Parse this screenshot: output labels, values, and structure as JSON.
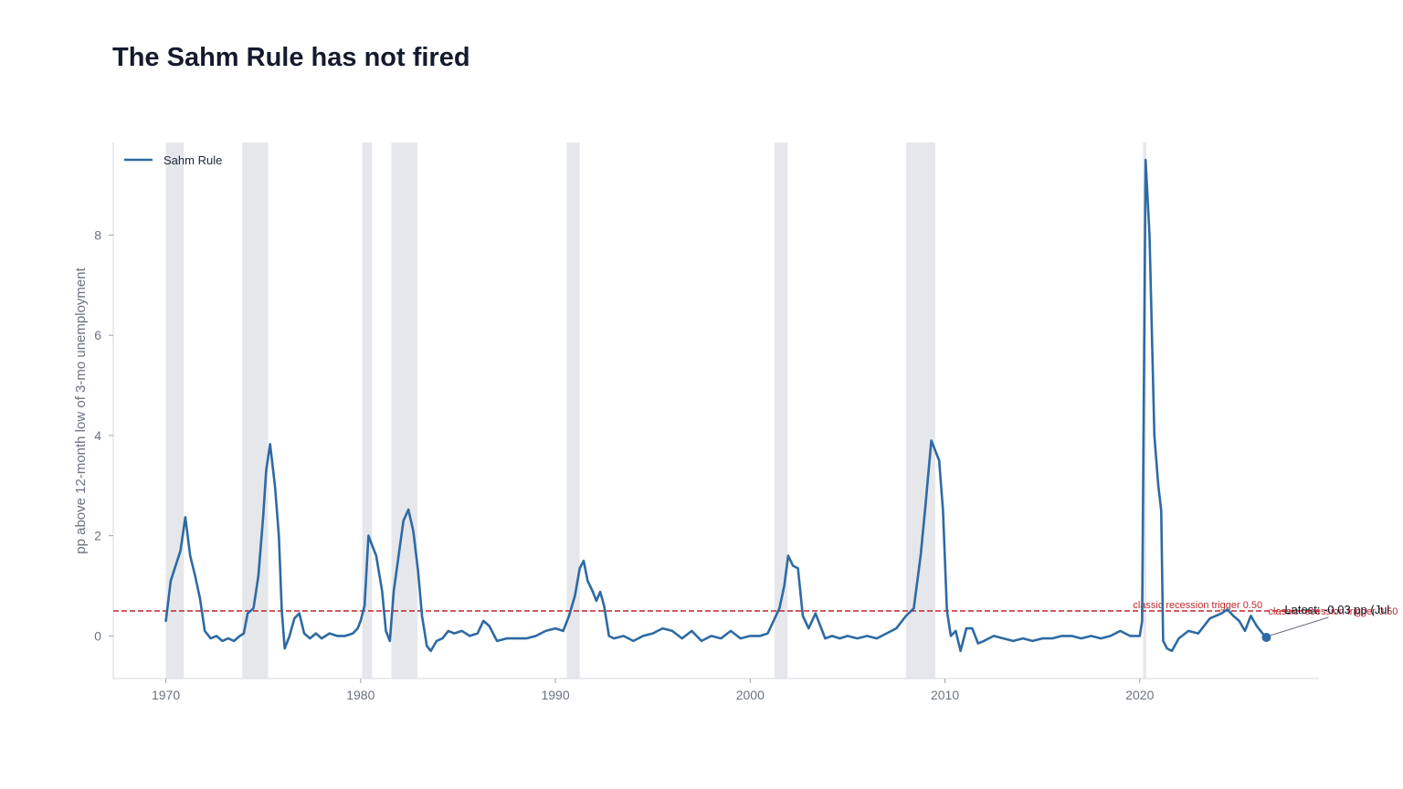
{
  "title": "The Sahm Rule has not fired",
  "chart_data": {
    "type": "line",
    "title": "The Sahm Rule has not fired",
    "xlabel": "",
    "ylabel": "pp above 12-month low of 3-mo unemployment",
    "xlim": [
      1967.3,
      2029.2
    ],
    "ylim": [
      -0.85,
      9.85
    ],
    "x_ticks": [
      1970,
      1980,
      1990,
      2000,
      2010,
      2020
    ],
    "y_ticks": [
      0,
      2,
      4,
      6,
      8
    ],
    "grid": false,
    "legend_position": "top-left",
    "recessions": [
      [
        1970.0,
        1970.92
      ],
      [
        1973.92,
        1975.25
      ],
      [
        1980.08,
        1980.58
      ],
      [
        1981.58,
        1982.92
      ],
      [
        1990.58,
        1991.25
      ],
      [
        2001.25,
        2001.92
      ],
      [
        2008.0,
        2009.5
      ],
      [
        2020.17,
        2020.33
      ]
    ],
    "reference_line": {
      "value": 0.5,
      "label": "classic recession trigger  0.50",
      "color": "#c0272d"
    },
    "annotation": {
      "text": "Latest: -0.03 pp  (Jul",
      "x": 2026.5,
      "y": -0.03
    },
    "series": [
      {
        "name": "Sahm Rule",
        "color": "#2e6aa3",
        "points": [
          [
            1970.0,
            0.3
          ],
          [
            1970.25,
            1.1
          ],
          [
            1970.5,
            1.4
          ],
          [
            1970.75,
            1.7
          ],
          [
            1971.0,
            2.37
          ],
          [
            1971.25,
            1.6
          ],
          [
            1971.5,
            1.2
          ],
          [
            1971.75,
            0.75
          ],
          [
            1972.0,
            0.1
          ],
          [
            1972.3,
            -0.05
          ],
          [
            1972.6,
            0.0
          ],
          [
            1972.9,
            -0.1
          ],
          [
            1973.2,
            -0.05
          ],
          [
            1973.5,
            -0.1
          ],
          [
            1973.8,
            0.0
          ],
          [
            1974.0,
            0.05
          ],
          [
            1974.2,
            0.45
          ],
          [
            1974.5,
            0.55
          ],
          [
            1974.75,
            1.2
          ],
          [
            1975.0,
            2.4
          ],
          [
            1975.15,
            3.3
          ],
          [
            1975.35,
            3.83
          ],
          [
            1975.6,
            3.0
          ],
          [
            1975.8,
            2.0
          ],
          [
            1975.95,
            0.5
          ],
          [
            1976.1,
            -0.25
          ],
          [
            1976.35,
            0.0
          ],
          [
            1976.6,
            0.35
          ],
          [
            1976.85,
            0.45
          ],
          [
            1977.1,
            0.05
          ],
          [
            1977.4,
            -0.05
          ],
          [
            1977.7,
            0.05
          ],
          [
            1978.0,
            -0.05
          ],
          [
            1978.4,
            0.05
          ],
          [
            1978.8,
            0.0
          ],
          [
            1979.2,
            0.0
          ],
          [
            1979.6,
            0.05
          ],
          [
            1979.85,
            0.15
          ],
          [
            1980.0,
            0.3
          ],
          [
            1980.2,
            0.6
          ],
          [
            1980.4,
            2.0
          ],
          [
            1980.6,
            1.8
          ],
          [
            1980.8,
            1.6
          ],
          [
            1981.1,
            0.9
          ],
          [
            1981.3,
            0.1
          ],
          [
            1981.5,
            -0.1
          ],
          [
            1981.7,
            0.9
          ],
          [
            1981.95,
            1.6
          ],
          [
            1982.2,
            2.3
          ],
          [
            1982.45,
            2.52
          ],
          [
            1982.7,
            2.1
          ],
          [
            1982.95,
            1.3
          ],
          [
            1983.15,
            0.4
          ],
          [
            1983.4,
            -0.2
          ],
          [
            1983.6,
            -0.3
          ],
          [
            1983.9,
            -0.1
          ],
          [
            1984.2,
            -0.05
          ],
          [
            1984.5,
            0.1
          ],
          [
            1984.8,
            0.05
          ],
          [
            1985.2,
            0.1
          ],
          [
            1985.6,
            0.0
          ],
          [
            1986.0,
            0.05
          ],
          [
            1986.3,
            0.3
          ],
          [
            1986.6,
            0.2
          ],
          [
            1987.0,
            -0.1
          ],
          [
            1987.5,
            -0.05
          ],
          [
            1988.0,
            -0.05
          ],
          [
            1988.5,
            -0.05
          ],
          [
            1989.0,
            0.0
          ],
          [
            1989.5,
            0.1
          ],
          [
            1990.0,
            0.15
          ],
          [
            1990.4,
            0.1
          ],
          [
            1990.7,
            0.4
          ],
          [
            1991.0,
            0.8
          ],
          [
            1991.25,
            1.35
          ],
          [
            1991.45,
            1.5
          ],
          [
            1991.65,
            1.1
          ],
          [
            1991.9,
            0.9
          ],
          [
            1992.1,
            0.7
          ],
          [
            1992.3,
            0.88
          ],
          [
            1992.5,
            0.6
          ],
          [
            1992.75,
            0.0
          ],
          [
            1993.0,
            -0.05
          ],
          [
            1993.5,
            0.0
          ],
          [
            1994.0,
            -0.1
          ],
          [
            1994.5,
            0.0
          ],
          [
            1995.0,
            0.05
          ],
          [
            1995.5,
            0.15
          ],
          [
            1996.0,
            0.1
          ],
          [
            1996.5,
            -0.05
          ],
          [
            1997.0,
            0.1
          ],
          [
            1997.5,
            -0.1
          ],
          [
            1998.0,
            0.0
          ],
          [
            1998.5,
            -0.05
          ],
          [
            1999.0,
            0.1
          ],
          [
            1999.5,
            -0.05
          ],
          [
            2000.0,
            0.0
          ],
          [
            2000.5,
            0.0
          ],
          [
            2000.9,
            0.05
          ],
          [
            2001.2,
            0.3
          ],
          [
            2001.5,
            0.55
          ],
          [
            2001.75,
            1.0
          ],
          [
            2001.95,
            1.6
          ],
          [
            2002.2,
            1.4
          ],
          [
            2002.45,
            1.35
          ],
          [
            2002.7,
            0.4
          ],
          [
            2003.0,
            0.15
          ],
          [
            2003.35,
            0.45
          ],
          [
            2003.6,
            0.2
          ],
          [
            2003.85,
            -0.05
          ],
          [
            2004.2,
            0.0
          ],
          [
            2004.6,
            -0.05
          ],
          [
            2005.0,
            0.0
          ],
          [
            2005.5,
            -0.05
          ],
          [
            2006.0,
            0.0
          ],
          [
            2006.5,
            -0.05
          ],
          [
            2007.0,
            0.05
          ],
          [
            2007.5,
            0.15
          ],
          [
            2008.0,
            0.4
          ],
          [
            2008.4,
            0.55
          ],
          [
            2008.75,
            1.6
          ],
          [
            2009.0,
            2.6
          ],
          [
            2009.3,
            3.9
          ],
          [
            2009.5,
            3.7
          ],
          [
            2009.7,
            3.5
          ],
          [
            2009.9,
            2.5
          ],
          [
            2010.1,
            0.5
          ],
          [
            2010.3,
            0.0
          ],
          [
            2010.55,
            0.1
          ],
          [
            2010.8,
            -0.3
          ],
          [
            2011.1,
            0.15
          ],
          [
            2011.4,
            0.15
          ],
          [
            2011.7,
            -0.15
          ],
          [
            2012.0,
            -0.1
          ],
          [
            2012.5,
            0.0
          ],
          [
            2013.0,
            -0.05
          ],
          [
            2013.5,
            -0.1
          ],
          [
            2014.0,
            -0.05
          ],
          [
            2014.5,
            -0.1
          ],
          [
            2015.0,
            -0.05
          ],
          [
            2015.5,
            -0.05
          ],
          [
            2016.0,
            0.0
          ],
          [
            2016.5,
            0.0
          ],
          [
            2017.0,
            -0.05
          ],
          [
            2017.5,
            0.0
          ],
          [
            2018.0,
            -0.05
          ],
          [
            2018.5,
            0.0
          ],
          [
            2019.0,
            0.1
          ],
          [
            2019.5,
            0.0
          ],
          [
            2020.0,
            0.0
          ],
          [
            2020.12,
            0.3
          ],
          [
            2020.3,
            9.5
          ],
          [
            2020.5,
            8.0
          ],
          [
            2020.75,
            4.0
          ],
          [
            2020.95,
            3.0
          ],
          [
            2021.1,
            2.5
          ],
          [
            2021.2,
            -0.1
          ],
          [
            2021.4,
            -0.25
          ],
          [
            2021.65,
            -0.3
          ],
          [
            2022.0,
            -0.05
          ],
          [
            2022.5,
            0.1
          ],
          [
            2023.0,
            0.05
          ],
          [
            2023.3,
            0.2
          ],
          [
            2023.6,
            0.35
          ],
          [
            2023.9,
            0.4
          ],
          [
            2024.2,
            0.45
          ],
          [
            2024.5,
            0.53
          ],
          [
            2024.8,
            0.4
          ],
          [
            2025.1,
            0.3
          ],
          [
            2025.4,
            0.1
          ],
          [
            2025.7,
            0.4
          ],
          [
            2026.0,
            0.2
          ],
          [
            2026.3,
            0.05
          ],
          [
            2026.5,
            -0.03
          ]
        ]
      }
    ]
  }
}
